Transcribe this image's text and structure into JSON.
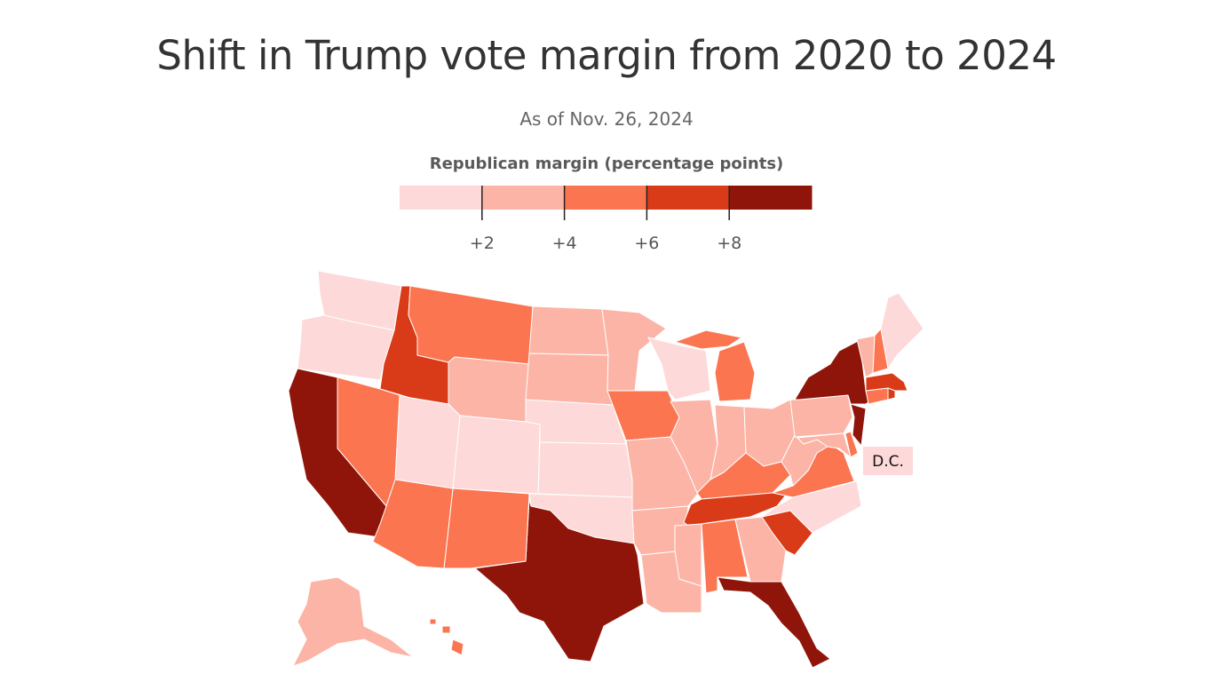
{
  "chart_data": {
    "type": "choropleth",
    "title": "Shift in Trump vote margin from 2020 to 2024",
    "subtitle": "As of Nov. 26, 2024",
    "legend": {
      "title": "Republican margin (percentage points)",
      "tick_labels": [
        "+2",
        "+4",
        "+6",
        "+8"
      ],
      "thresholds": [
        2,
        4,
        6,
        8
      ],
      "colors": [
        "#fdd9d9",
        "#fcb4a6",
        "#fb7551",
        "#d93a17",
        "#8f150a"
      ],
      "placement": "top"
    },
    "annotation": "D.C.",
    "bins": {
      "WA": 0,
      "OR": 0,
      "ID": 3,
      "MT": 2,
      "WY": 1,
      "ND": 1,
      "SD": 1,
      "NE": 0,
      "KS": 0,
      "OK": 0,
      "TX": 4,
      "NM": 2,
      "CO": 0,
      "UT": 0,
      "NV": 2,
      "CA": 4,
      "AZ": 2,
      "MN": 1,
      "IA": 2,
      "MO": 1,
      "AR": 1,
      "LA": 1,
      "WI": 0,
      "IL": 1,
      "MI": 2,
      "IN": 1,
      "OH": 1,
      "KY": 2,
      "TN": 3,
      "MS": 1,
      "AL": 2,
      "GA": 1,
      "FL": 4,
      "SC": 3,
      "NC": 0,
      "VA": 2,
      "WV": 1,
      "PA": 1,
      "MD": 1,
      "DE": 2,
      "NJ": 4,
      "NY": 4,
      "CT": 2,
      "RI": 3,
      "MA": 3,
      "VT": 1,
      "NH": 2,
      "ME": 0,
      "AK": 1,
      "HI": 2,
      "DC": 0
    }
  }
}
